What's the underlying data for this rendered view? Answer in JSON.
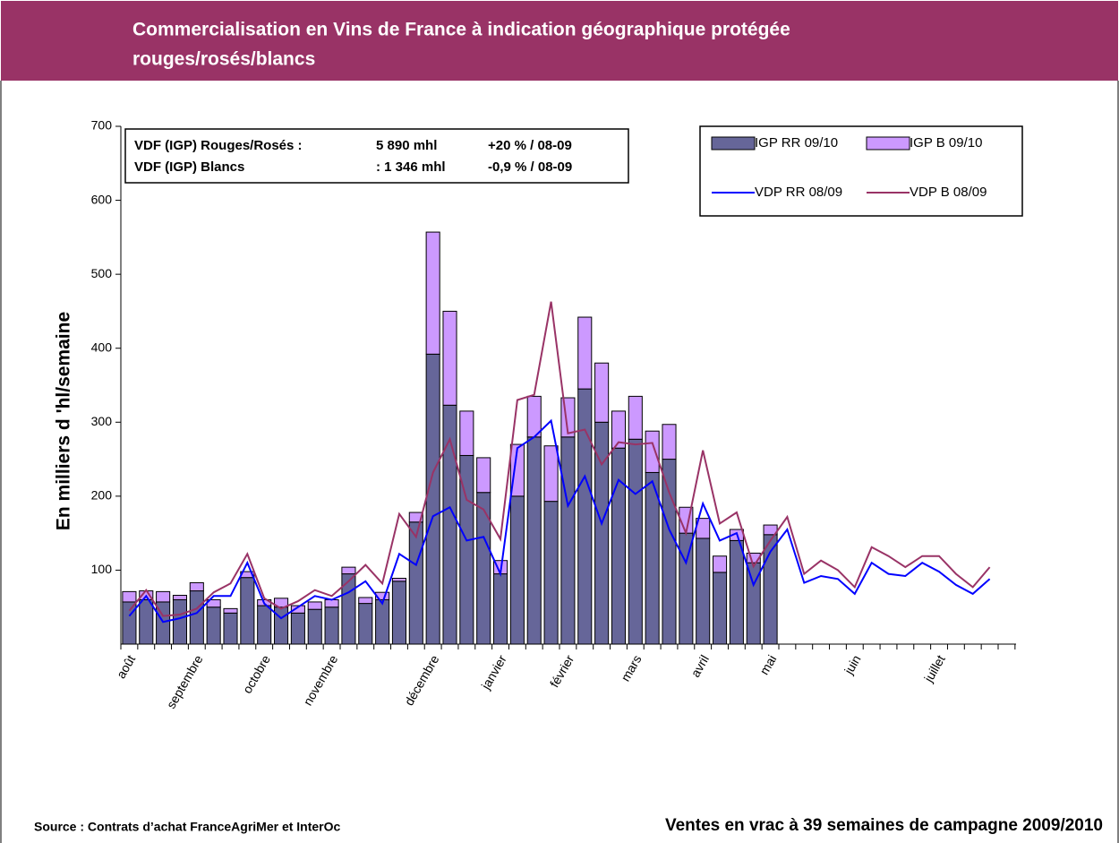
{
  "chart_data": {
    "type": "bar",
    "title": "Commercialisation en Vins de France à indication géographique protégée",
    "subtitle": "rouges/rosés/blancs",
    "y_label": "En milliers d 'hl/semaine",
    "source": "Source : Contrats d’achat FranceAgriMer et InterOc",
    "note": "Ventes en vrac à 39 semaines de campagne 2009/2010",
    "summary": [
      {
        "label": "VDF (IGP) Rouges/Rosés :",
        "value": "5 890 mhl",
        "change": "+20 % / 08-09"
      },
      {
        "label": "VDF (IGP) Blancs",
        "value": ": 1 346 mhl",
        "change": "-0,9 % / 08-09"
      }
    ],
    "ylim": [
      0,
      700
    ],
    "yticks": [
      100,
      200,
      300,
      400,
      500,
      600,
      700
    ],
    "grid": false,
    "legend": "top-right",
    "categories": [
      "août",
      null,
      null,
      null,
      "septembre",
      null,
      null,
      null,
      "octobre",
      null,
      null,
      null,
      "novembre",
      null,
      null,
      null,
      null,
      null,
      "décembre",
      null,
      null,
      null,
      "janvier",
      null,
      null,
      null,
      "février",
      null,
      null,
      null,
      "mars",
      null,
      null,
      null,
      "avril",
      null,
      null,
      null,
      "mai",
      null,
      null,
      null,
      null,
      "juin",
      null,
      null,
      null,
      null,
      "juillet",
      null,
      null,
      null
    ],
    "series": [
      {
        "name": "IGP RR 09/10",
        "kind": "bar",
        "color": "#666699",
        "values": [
          57,
          60,
          57,
          60,
          72,
          50,
          42,
          90,
          52,
          50,
          42,
          47,
          50,
          95,
          55,
          60,
          85,
          165,
          392,
          323,
          255,
          205,
          95,
          200,
          280,
          193,
          280,
          345,
          300,
          265,
          277,
          232,
          250,
          150,
          143,
          97,
          140,
          110,
          148,
          null,
          null,
          null,
          null,
          null,
          null,
          null,
          null,
          null,
          null,
          null,
          null,
          null
        ]
      },
      {
        "name": "IGP B 09/10",
        "kind": "bar",
        "color": "#cc99ff",
        "values": [
          14,
          12,
          14,
          6,
          11,
          10,
          6,
          8,
          8,
          12,
          10,
          10,
          10,
          9,
          8,
          10,
          4,
          13,
          165,
          127,
          60,
          47,
          18,
          70,
          55,
          75,
          53,
          97,
          80,
          50,
          58,
          56,
          47,
          35,
          27,
          22,
          15,
          13,
          13,
          null,
          null,
          null,
          null,
          null,
          null,
          null,
          null,
          null,
          null,
          null,
          null,
          null
        ]
      },
      {
        "name": "VDP RR 08/09",
        "kind": "line",
        "color": "#0000ff",
        "values": [
          38,
          65,
          30,
          35,
          42,
          65,
          65,
          110,
          55,
          35,
          50,
          65,
          60,
          70,
          85,
          55,
          122,
          107,
          173,
          185,
          140,
          145,
          95,
          265,
          280,
          302,
          187,
          227,
          163,
          222,
          203,
          220,
          155,
          110,
          190,
          140,
          150,
          80,
          125,
          155,
          83,
          92,
          88,
          68,
          110,
          95,
          92,
          110,
          98,
          80,
          68,
          88
        ]
      },
      {
        "name": "VDP B 08/09",
        "kind": "line",
        "color": "#993366",
        "values": [
          45,
          73,
          38,
          40,
          48,
          70,
          82,
          122,
          62,
          48,
          58,
          73,
          65,
          85,
          107,
          82,
          176,
          145,
          232,
          277,
          195,
          182,
          142,
          330,
          337,
          463,
          285,
          290,
          243,
          273,
          270,
          272,
          205,
          150,
          262,
          163,
          178,
          105,
          140,
          172,
          95,
          113,
          100,
          77,
          131,
          119,
          104,
          119,
          119,
          95,
          77,
          104
        ]
      }
    ]
  }
}
